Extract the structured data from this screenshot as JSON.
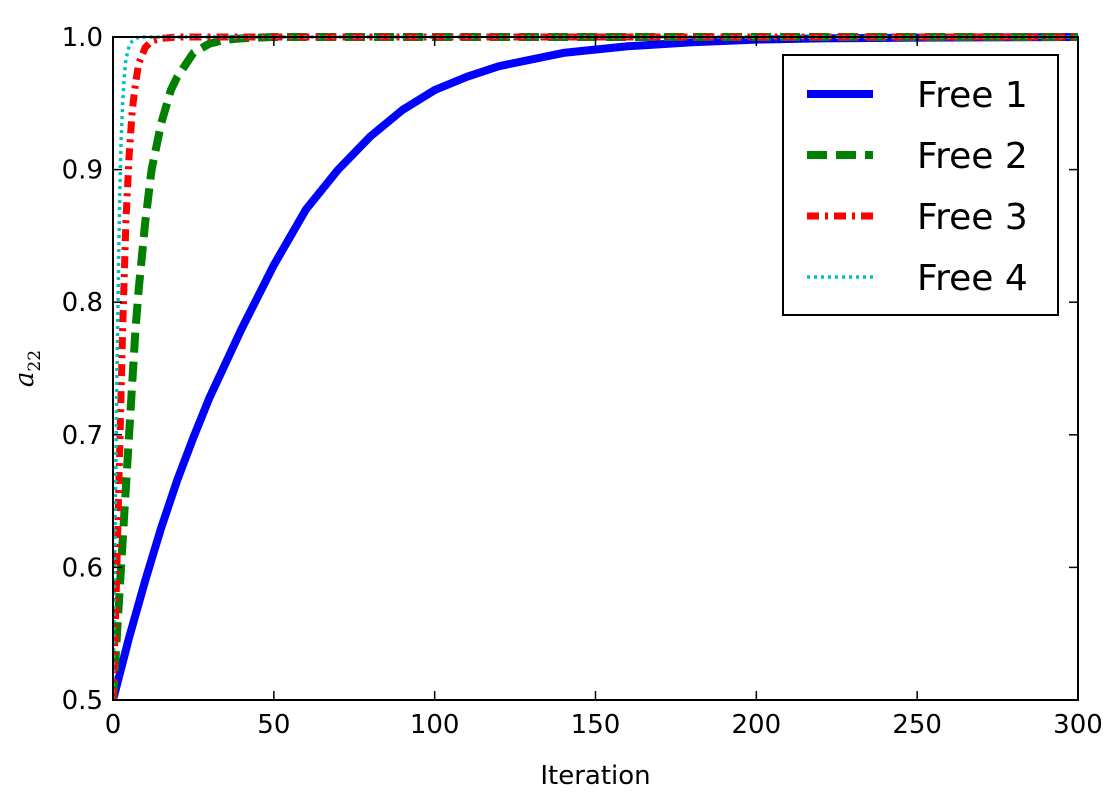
{
  "chart_data": {
    "type": "line",
    "xlabel": "Iteration",
    "ylabel": "a",
    "ylabel_sub": "22",
    "xlim": [
      0,
      300
    ],
    "ylim": [
      0.5,
      1.0
    ],
    "xticks": [
      0,
      50,
      100,
      150,
      200,
      250,
      300
    ],
    "yticks": [
      0.5,
      0.6,
      0.7,
      0.8,
      0.9,
      1.0
    ],
    "xtick_labels": [
      "0",
      "50",
      "100",
      "150",
      "200",
      "250",
      "300"
    ],
    "ytick_labels": [
      "0.5",
      "0.6",
      "0.7",
      "0.8",
      "0.9",
      "1.0"
    ],
    "grid": false,
    "legend_position": "top-right",
    "series": [
      {
        "name": "Free 1",
        "color": "#0000ff",
        "style": "solid",
        "x": [
          0,
          5,
          10,
          15,
          20,
          25,
          30,
          40,
          50,
          60,
          70,
          80,
          90,
          100,
          110,
          120,
          140,
          160,
          180,
          200,
          220,
          250,
          300
        ],
        "y": [
          0.5,
          0.547,
          0.59,
          0.63,
          0.666,
          0.698,
          0.728,
          0.78,
          0.828,
          0.87,
          0.9,
          0.925,
          0.945,
          0.96,
          0.97,
          0.978,
          0.988,
          0.993,
          0.996,
          0.998,
          0.999,
          0.9995,
          1.0
        ]
      },
      {
        "name": "Free 2",
        "color": "#008000",
        "style": "dashed",
        "x": [
          0,
          1,
          2,
          3,
          4,
          5,
          6,
          7,
          8,
          10,
          12,
          15,
          18,
          20,
          25,
          30,
          35,
          40,
          50,
          300
        ],
        "y": [
          0.5,
          0.54,
          0.58,
          0.62,
          0.66,
          0.7,
          0.74,
          0.78,
          0.81,
          0.86,
          0.9,
          0.935,
          0.96,
          0.97,
          0.988,
          0.995,
          0.998,
          0.999,
          1.0,
          1.0
        ]
      },
      {
        "name": "Free 3",
        "color": "#ff0000",
        "style": "dashdot",
        "x": [
          0,
          0.5,
          1,
          1.5,
          2,
          2.5,
          3,
          3.5,
          4,
          5,
          6,
          7,
          8,
          10,
          12,
          15,
          20,
          300
        ],
        "y": [
          0.5,
          0.54,
          0.58,
          0.63,
          0.68,
          0.73,
          0.78,
          0.82,
          0.86,
          0.91,
          0.945,
          0.965,
          0.98,
          0.992,
          0.997,
          0.999,
          1.0,
          1.0
        ]
      },
      {
        "name": "Free 4",
        "color": "#00bfbf",
        "style": "dotted",
        "x": [
          0,
          0.3,
          0.6,
          0.9,
          1.2,
          1.5,
          1.8,
          2.1,
          2.5,
          3,
          3.5,
          4,
          5,
          6,
          8,
          300
        ],
        "y": [
          0.5,
          0.56,
          0.62,
          0.68,
          0.74,
          0.79,
          0.84,
          0.88,
          0.92,
          0.95,
          0.97,
          0.983,
          0.993,
          0.997,
          1.0,
          1.0
        ]
      }
    ]
  }
}
